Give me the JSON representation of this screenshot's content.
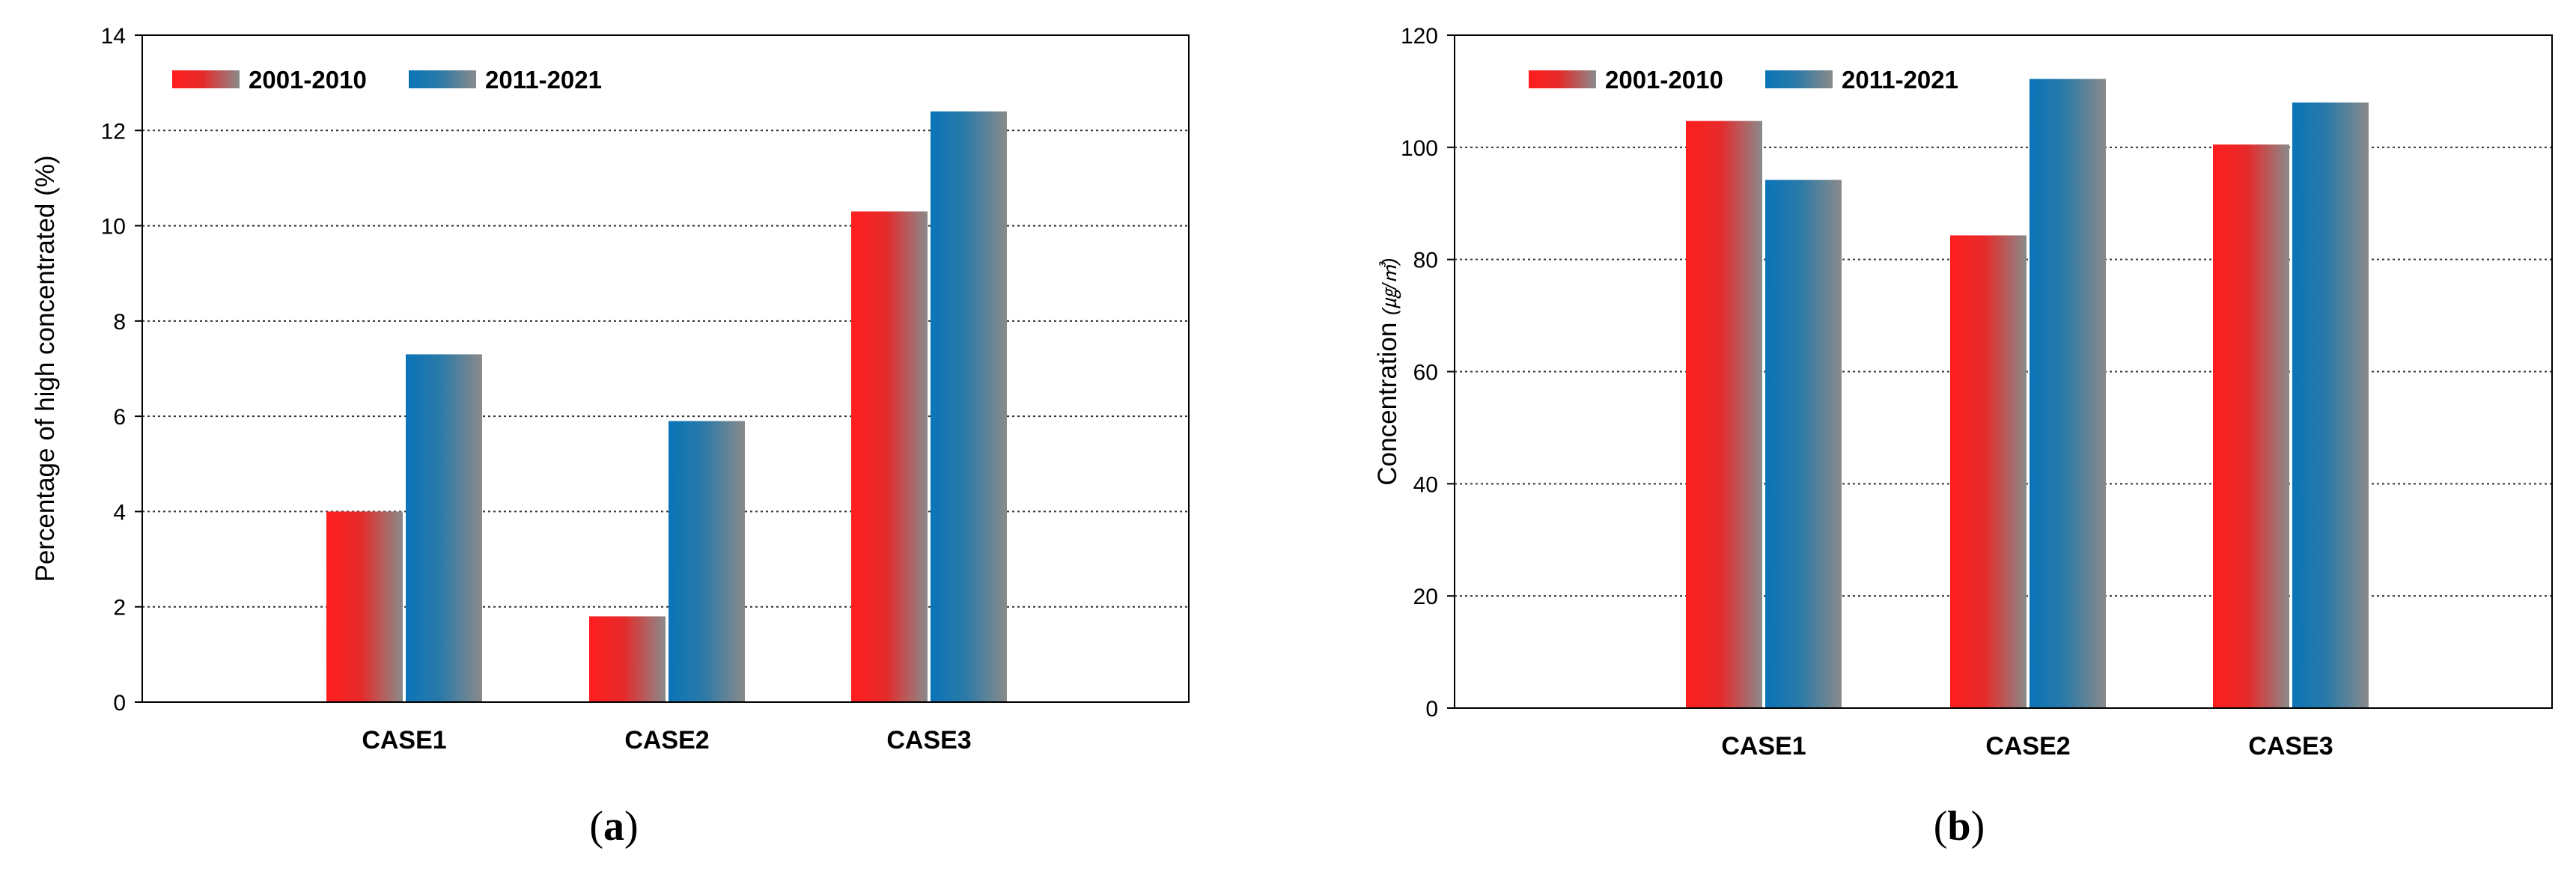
{
  "colors": {
    "series1_from": "#ff1e1e",
    "series1_to": "#8a8a8a",
    "series2_from": "#0a74b8",
    "series2_to": "#8a8a8a",
    "grid": "#333333",
    "axis": "#000000"
  },
  "chart_data": [
    {
      "type": "bar",
      "panel_label_left": "(",
      "panel_label_letter": "a",
      "panel_label_right": ")",
      "title": "",
      "xlabel": "",
      "ylabel": "Percentage of high concentrated (%)",
      "ylabel_unit": "",
      "categories": [
        "CASE1",
        "CASE2",
        "CASE3"
      ],
      "series": [
        {
          "name": "2001-2010",
          "values": [
            4.0,
            1.8,
            10.3
          ]
        },
        {
          "name": "2011-2021",
          "values": [
            7.3,
            5.9,
            12.4
          ]
        }
      ],
      "ylim": [
        0,
        14
      ],
      "yticks": [
        0,
        2,
        4,
        6,
        8,
        10,
        12,
        14
      ],
      "grid": "horizontal dotted",
      "legend": "top-left"
    },
    {
      "type": "bar",
      "panel_label_left": "(",
      "panel_label_letter": "b",
      "panel_label_right": ")",
      "title": "",
      "xlabel": "",
      "ylabel": "Concentration ",
      "ylabel_unit": "(㎍/㎥)",
      "categories": [
        "CASE1",
        "CASE2",
        "CASE3"
      ],
      "series": [
        {
          "name": "2001-2010",
          "values": [
            104.7,
            84.3,
            100.5
          ]
        },
        {
          "name": "2011-2021",
          "values": [
            94.2,
            112.2,
            108.0
          ]
        }
      ],
      "ylim": [
        0,
        120
      ],
      "yticks": [
        0,
        20,
        40,
        60,
        80,
        100,
        120
      ],
      "grid": "horizontal dotted",
      "legend": "top-left"
    }
  ]
}
